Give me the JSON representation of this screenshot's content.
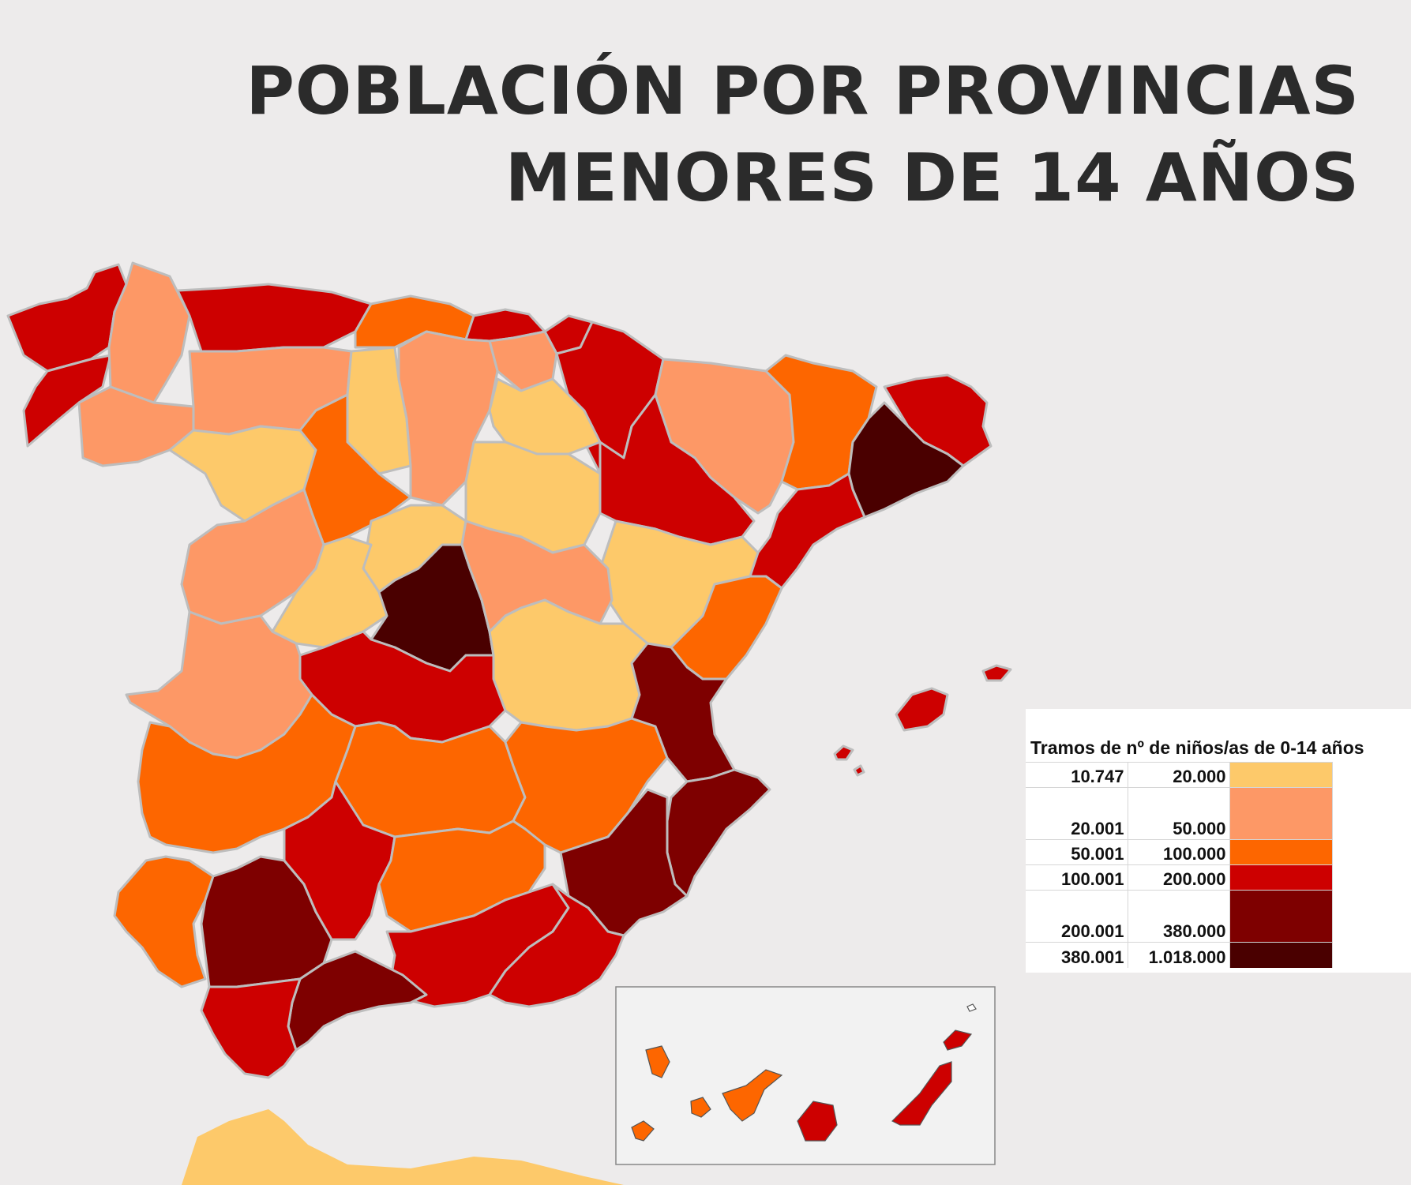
{
  "title": {
    "line1": "POBLACIÓN POR PROVINCIAS",
    "line2": "MENORES DE 14 AÑOS"
  },
  "colors": {
    "background": "#edebeb",
    "tier1": "#fdc96a",
    "tier2": "#fd9866",
    "tier3": "#fd6600",
    "tier4": "#cd0000",
    "tier5": "#7e0000",
    "tier6": "#4a0000"
  },
  "legend": {
    "title": "Tramos de nº de niños/as de 0-14 años",
    "rows": [
      {
        "from": "10.747",
        "to": "20.000",
        "color": "#fdc96a"
      },
      {
        "from": "20.001",
        "to": "50.000",
        "color": "#fd9866"
      },
      {
        "from": "50.001",
        "to": "100.000",
        "color": "#fd6600"
      },
      {
        "from": "100.001",
        "to": "200.000",
        "color": "#cd0000"
      },
      {
        "from": "200.001",
        "to": "380.000",
        "color": "#7e0000"
      },
      {
        "from": "380.001",
        "to": "1.018.000",
        "color": "#4a0000"
      }
    ]
  }
}
